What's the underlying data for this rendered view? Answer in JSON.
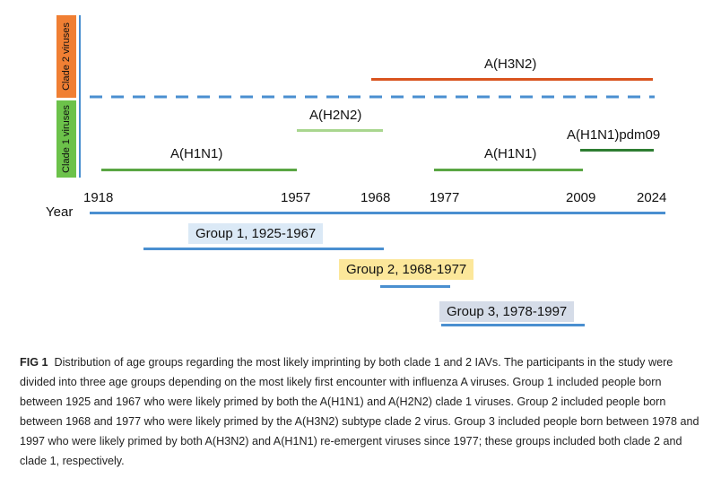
{
  "clade_labels": {
    "clade2": "Clade 2 viruses",
    "clade1": "Clade 1 viruses"
  },
  "subtypes": {
    "h3n2": "A(H3N2)",
    "h2n2": "A(H2N2)",
    "h1n1_early": "A(H1N1)",
    "h1n1_late": "A(H1N1)",
    "h1n1pdm": "A(H1N1)pdm09"
  },
  "axis": {
    "label": "Year",
    "ticks": [
      "1918",
      "1957",
      "1968",
      "1977",
      "2009",
      "2024"
    ]
  },
  "groups": [
    {
      "label": "Group 1, 1925-1967",
      "color": "#dbe9f6"
    },
    {
      "label": "Group 2, 1968-1977",
      "color": "#fce79a"
    },
    {
      "label": "Group 3, 1978-1997",
      "color": "#d5dce8"
    }
  ],
  "colors": {
    "clade2_box": "#f07f33",
    "clade1_box": "#6cc24a",
    "h3n2_line": "#d9541e",
    "h2n2_line": "#a9d68f",
    "h1n1_line": "#5aa644",
    "h1n1pdm_line": "#2e7d32",
    "axis_line": "#4a8fd0",
    "divider": "#4a8fd0"
  },
  "caption": {
    "fig_label": "FIG 1",
    "text": "Distribution of age groups regarding the most likely imprinting by both clade 1 and 2 IAVs. The participants in the study were divided into three age groups depending on the most likely first encounter with influenza A viruses. Group 1 included people born between 1925 and 1967 who were likely primed by both the A(H1N1) and A(H2N2) clade 1 viruses. Group 2 included people born between 1968 and 1977 who were likely primed by the A(H3N2) subtype clade 2 virus. Group 3 included people born between 1978 and 1997 who were likely primed by both A(H3N2) and A(H1N1) re-emergent viruses since 1977; these groups included both clade 2 and clade 1, respectively."
  }
}
